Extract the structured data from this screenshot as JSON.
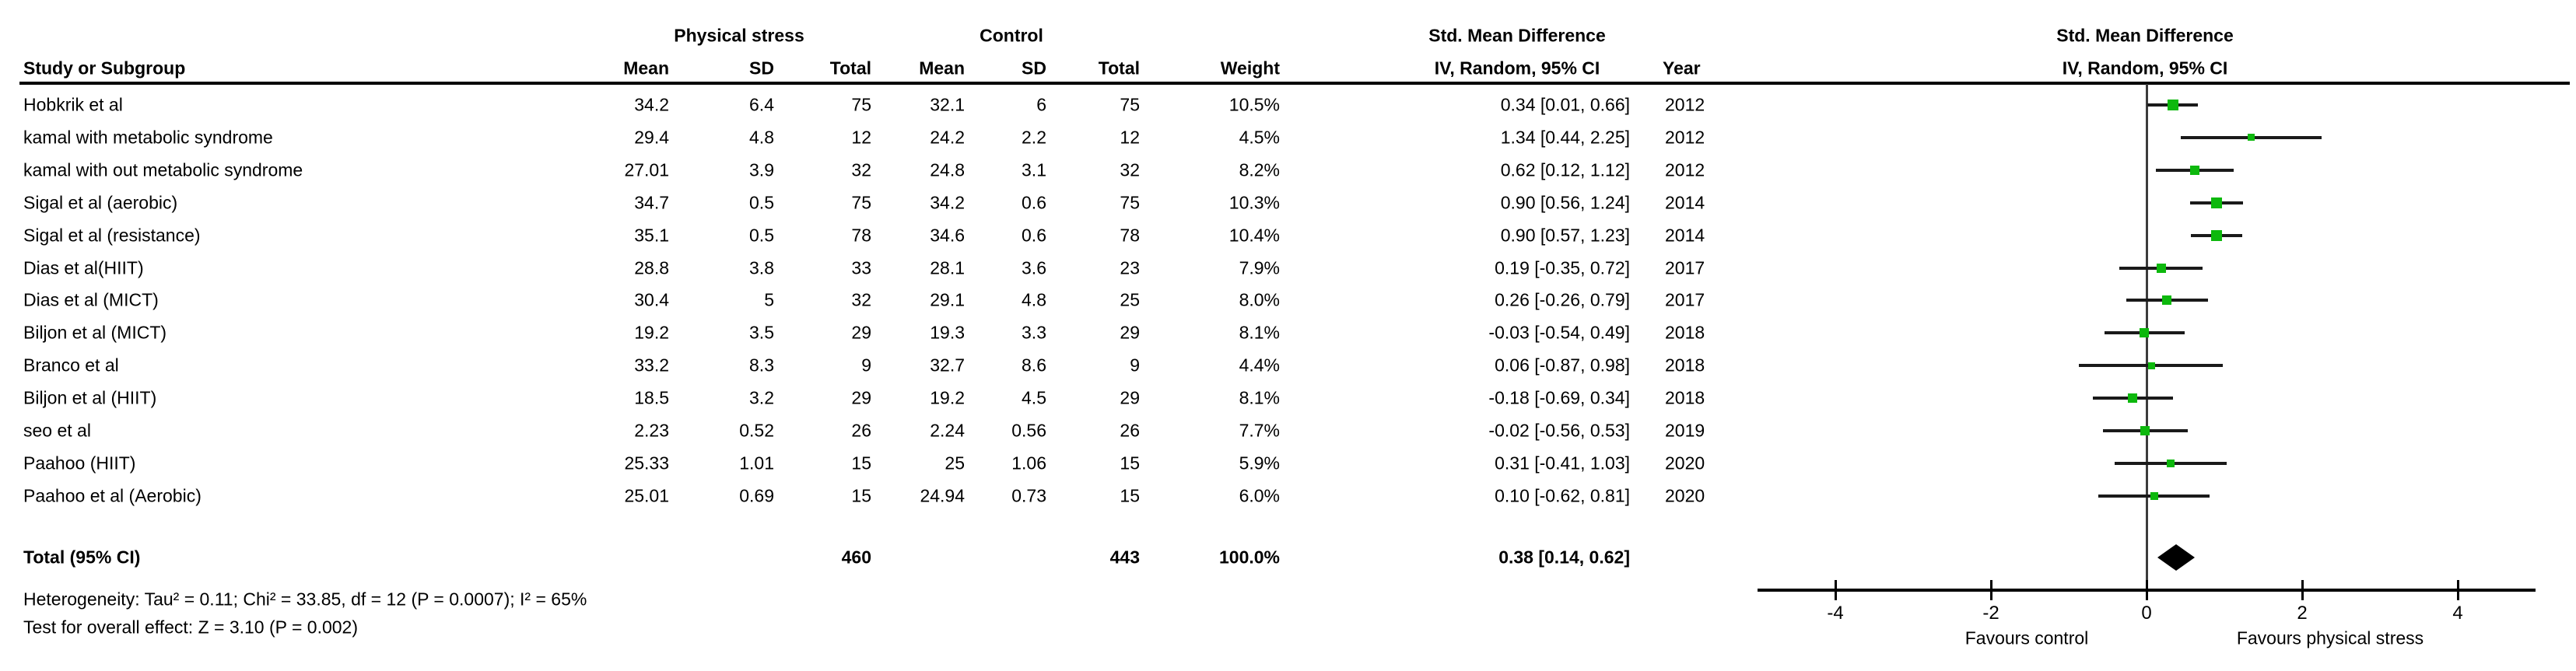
{
  "header": {
    "group1": "Physical stress",
    "group2": "Control",
    "study_col": "Study or Subgroup",
    "col_mean": "Mean",
    "col_sd": "SD",
    "col_total": "Total",
    "col_weight": "Weight",
    "smd_line1": "Std. Mean Difference",
    "smd_line2": "IV, Random, 95% CI",
    "year_col": "Year",
    "plot_line1": "Std. Mean Difference",
    "plot_line2": "IV, Random, 95% CI"
  },
  "footnotes": {
    "heterogeneity": "Heterogeneity: Tau² = 0.11; Chi² = 33.85, df = 12 (P = 0.0007); I² = 65%",
    "overall_effect": "Test for overall effect: Z = 3.10 (P = 0.002)"
  },
  "chart_data": {
    "type": "scatter",
    "title": "Std. Mean Difference, IV, Random, 95% CI (forest plot)",
    "xlabel": "",
    "ylabel": "",
    "xlim": [
      -5,
      5
    ],
    "x_ticks": [
      -4,
      -2,
      0,
      2,
      4
    ],
    "x_axis_annotations": {
      "left": "Favours control",
      "right": "Favours physical stress"
    },
    "marker_color": "#0db80d",
    "diamond_color": "#000000",
    "points": [
      {
        "study": "Hobkrik et al",
        "mean_e": "34.2",
        "sd_e": "6.4",
        "n_e": "75",
        "mean_c": "32.1",
        "sd_c": "6",
        "n_c": "75",
        "weight": "10.5%",
        "weight_pct": 10.5,
        "smd": 0.34,
        "ci_low": 0.01,
        "ci_high": 0.66,
        "ci_text": "0.34 [0.01, 0.66]",
        "year": "2012"
      },
      {
        "study": "kamal with metabolic syndrome",
        "mean_e": "29.4",
        "sd_e": "4.8",
        "n_e": "12",
        "mean_c": "24.2",
        "sd_c": "2.2",
        "n_c": "12",
        "weight": "4.5%",
        "weight_pct": 4.5,
        "smd": 1.34,
        "ci_low": 0.44,
        "ci_high": 2.25,
        "ci_text": "1.34 [0.44, 2.25]",
        "year": "2012"
      },
      {
        "study": "kamal with out metabolic syndrome",
        "mean_e": "27.01",
        "sd_e": "3.9",
        "n_e": "32",
        "mean_c": "24.8",
        "sd_c": "3.1",
        "n_c": "32",
        "weight": "8.2%",
        "weight_pct": 8.2,
        "smd": 0.62,
        "ci_low": 0.12,
        "ci_high": 1.12,
        "ci_text": "0.62 [0.12, 1.12]",
        "year": "2012"
      },
      {
        "study": "Sigal et al (aerobic)",
        "mean_e": "34.7",
        "sd_e": "0.5",
        "n_e": "75",
        "mean_c": "34.2",
        "sd_c": "0.6",
        "n_c": "75",
        "weight": "10.3%",
        "weight_pct": 10.3,
        "smd": 0.9,
        "ci_low": 0.56,
        "ci_high": 1.24,
        "ci_text": "0.90 [0.56, 1.24]",
        "year": "2014"
      },
      {
        "study": "Sigal et al (resistance)",
        "mean_e": "35.1",
        "sd_e": "0.5",
        "n_e": "78",
        "mean_c": "34.6",
        "sd_c": "0.6",
        "n_c": "78",
        "weight": "10.4%",
        "weight_pct": 10.4,
        "smd": 0.9,
        "ci_low": 0.57,
        "ci_high": 1.23,
        "ci_text": "0.90 [0.57, 1.23]",
        "year": "2014"
      },
      {
        "study": "Dias et al(HIIT)",
        "mean_e": "28.8",
        "sd_e": "3.8",
        "n_e": "33",
        "mean_c": "28.1",
        "sd_c": "3.6",
        "n_c": "23",
        "weight": "7.9%",
        "weight_pct": 7.9,
        "smd": 0.19,
        "ci_low": -0.35,
        "ci_high": 0.72,
        "ci_text": "0.19 [-0.35, 0.72]",
        "year": "2017"
      },
      {
        "study": "Dias et al (MICT)",
        "mean_e": "30.4",
        "sd_e": "5",
        "n_e": "32",
        "mean_c": "29.1",
        "sd_c": "4.8",
        "n_c": "25",
        "weight": "8.0%",
        "weight_pct": 8.0,
        "smd": 0.26,
        "ci_low": -0.26,
        "ci_high": 0.79,
        "ci_text": "0.26 [-0.26, 0.79]",
        "year": "2017"
      },
      {
        "study": "Biljon et al (MICT)",
        "mean_e": "19.2",
        "sd_e": "3.5",
        "n_e": "29",
        "mean_c": "19.3",
        "sd_c": "3.3",
        "n_c": "29",
        "weight": "8.1%",
        "weight_pct": 8.1,
        "smd": -0.03,
        "ci_low": -0.54,
        "ci_high": 0.49,
        "ci_text": "-0.03 [-0.54, 0.49]",
        "year": "2018"
      },
      {
        "study": "Branco et al",
        "mean_e": "33.2",
        "sd_e": "8.3",
        "n_e": "9",
        "mean_c": "32.7",
        "sd_c": "8.6",
        "n_c": "9",
        "weight": "4.4%",
        "weight_pct": 4.4,
        "smd": 0.06,
        "ci_low": -0.87,
        "ci_high": 0.98,
        "ci_text": "0.06 [-0.87, 0.98]",
        "year": "2018"
      },
      {
        "study": "Biljon et al (HIIT)",
        "mean_e": "18.5",
        "sd_e": "3.2",
        "n_e": "29",
        "mean_c": "19.2",
        "sd_c": "4.5",
        "n_c": "29",
        "weight": "8.1%",
        "weight_pct": 8.1,
        "smd": -0.18,
        "ci_low": -0.69,
        "ci_high": 0.34,
        "ci_text": "-0.18 [-0.69, 0.34]",
        "year": "2018"
      },
      {
        "study": "seo et al",
        "mean_e": "2.23",
        "sd_e": "0.52",
        "n_e": "26",
        "mean_c": "2.24",
        "sd_c": "0.56",
        "n_c": "26",
        "weight": "7.7%",
        "weight_pct": 7.7,
        "smd": -0.02,
        "ci_low": -0.56,
        "ci_high": 0.53,
        "ci_text": "-0.02 [-0.56, 0.53]",
        "year": "2019"
      },
      {
        "study": "Paahoo (HIIT)",
        "mean_e": "25.33",
        "sd_e": "1.01",
        "n_e": "15",
        "mean_c": "25",
        "sd_c": "1.06",
        "n_c": "15",
        "weight": "5.9%",
        "weight_pct": 5.9,
        "smd": 0.31,
        "ci_low": -0.41,
        "ci_high": 1.03,
        "ci_text": "0.31 [-0.41, 1.03]",
        "year": "2020"
      },
      {
        "study": "Paahoo et al (Aerobic)",
        "mean_e": "25.01",
        "sd_e": "0.69",
        "n_e": "15",
        "mean_c": "24.94",
        "sd_c": "0.73",
        "n_c": "15",
        "weight": "6.0%",
        "weight_pct": 6.0,
        "smd": 0.1,
        "ci_low": -0.62,
        "ci_high": 0.81,
        "ci_text": "0.10 [-0.62, 0.81]",
        "year": "2020"
      }
    ],
    "total": {
      "label": "Total (95% CI)",
      "n_e": "460",
      "n_c": "443",
      "weight": "100.0%",
      "smd": 0.38,
      "ci_low": 0.14,
      "ci_high": 0.62,
      "ci_text": "0.38 [0.14, 0.62]"
    }
  }
}
